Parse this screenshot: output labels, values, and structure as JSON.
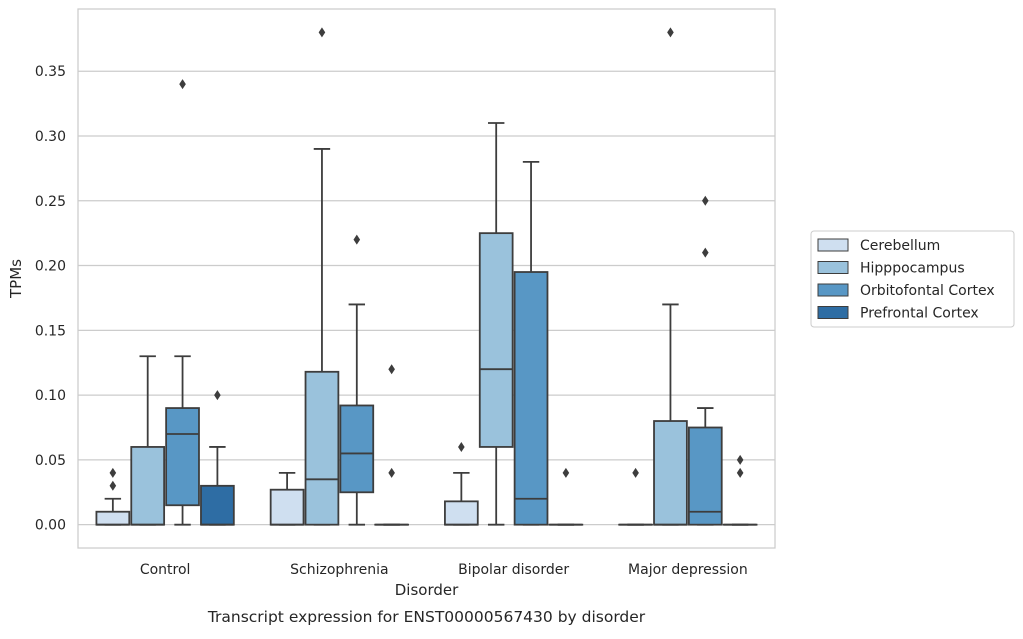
{
  "chart_data": {
    "type": "boxplot",
    "xlabel": "Disorder",
    "ylabel": "TPMs",
    "caption": "Transcript expression for ENST00000567430 by disorder",
    "ylim": [
      -0.018,
      0.398
    ],
    "yticks": [
      "0.00",
      "0.05",
      "0.10",
      "0.15",
      "0.20",
      "0.25",
      "0.30",
      "0.35"
    ],
    "ytick_values": [
      0,
      0.05,
      0.1,
      0.15,
      0.2,
      0.25,
      0.3,
      0.35
    ],
    "grid": "horizontal",
    "legend_position": "right",
    "categories": [
      "Control",
      "Schizophrenia",
      "Bipolar disorder",
      "Major depression"
    ],
    "series": [
      {
        "name": "Cerebellum",
        "color": "#cfdff0",
        "boxes": [
          {
            "q1": 0,
            "median": 0,
            "q3": 0.01,
            "whisker_low": 0,
            "whisker_high": 0.02,
            "outliers": [
              0.03,
              0.04
            ]
          },
          {
            "q1": 0,
            "median": 0,
            "q3": 0.027,
            "whisker_low": 0,
            "whisker_high": 0.04,
            "outliers": []
          },
          {
            "q1": 0,
            "median": 0,
            "q3": 0.018,
            "whisker_low": 0,
            "whisker_high": 0.04,
            "outliers": [
              0.06
            ]
          },
          {
            "q1": 0,
            "median": 0,
            "q3": 0,
            "whisker_low": 0,
            "whisker_high": 0,
            "outliers": [
              0.04
            ]
          }
        ]
      },
      {
        "name": "Hipppocampus",
        "color": "#9ac2dc",
        "boxes": [
          {
            "q1": 0,
            "median": 0,
            "q3": 0.06,
            "whisker_low": 0,
            "whisker_high": 0.13,
            "outliers": []
          },
          {
            "q1": 0,
            "median": 0.035,
            "q3": 0.118,
            "whisker_low": 0,
            "whisker_high": 0.29,
            "outliers": [
              0.38
            ]
          },
          {
            "q1": 0.06,
            "median": 0.12,
            "q3": 0.225,
            "whisker_low": 0,
            "whisker_high": 0.31,
            "outliers": []
          },
          {
            "q1": 0,
            "median": 0,
            "q3": 0.08,
            "whisker_low": 0,
            "whisker_high": 0.17,
            "outliers": [
              0.38
            ]
          }
        ]
      },
      {
        "name": "Orbitofontal Cortex",
        "color": "#5897c5",
        "boxes": [
          {
            "q1": 0.015,
            "median": 0.07,
            "q3": 0.09,
            "whisker_low": 0,
            "whisker_high": 0.13,
            "outliers": [
              0.34
            ]
          },
          {
            "q1": 0.025,
            "median": 0.055,
            "q3": 0.092,
            "whisker_low": 0,
            "whisker_high": 0.17,
            "outliers": [
              0.22
            ]
          },
          {
            "q1": 0,
            "median": 0.02,
            "q3": 0.195,
            "whisker_low": 0,
            "whisker_high": 0.28,
            "outliers": []
          },
          {
            "q1": 0,
            "median": 0.01,
            "q3": 0.075,
            "whisker_low": 0,
            "whisker_high": 0.09,
            "outliers": [
              0.21,
              0.25
            ]
          }
        ]
      },
      {
        "name": "Prefrontal Cortex",
        "color": "#2e6da4",
        "boxes": [
          {
            "q1": 0,
            "median": 0,
            "q3": 0.03,
            "whisker_low": 0,
            "whisker_high": 0.06,
            "outliers": [
              0.1
            ]
          },
          {
            "q1": 0,
            "median": 0,
            "q3": 0,
            "whisker_low": 0,
            "whisker_high": 0,
            "outliers": [
              0.04,
              0.12
            ]
          },
          {
            "q1": 0,
            "median": 0,
            "q3": 0,
            "whisker_low": 0,
            "whisker_high": 0,
            "outliers": [
              0.04
            ]
          },
          {
            "q1": 0,
            "median": 0,
            "q3": 0,
            "whisker_low": 0,
            "whisker_high": 0,
            "outliers": [
              0.04,
              0.05
            ]
          }
        ]
      }
    ]
  }
}
